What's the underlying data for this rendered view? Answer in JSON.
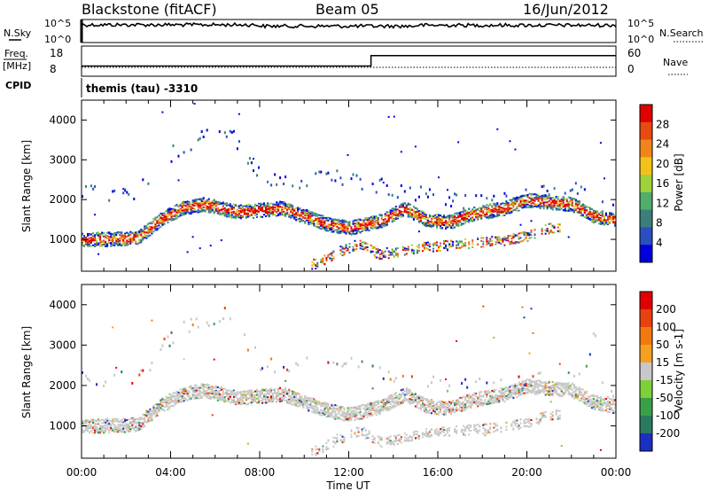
{
  "chart_data": {
    "type": "heatmap",
    "title": "Blackstone (fitACF)",
    "beam": "Beam 05",
    "date": "16/Jun/2012",
    "xlabel": "Time UT",
    "x_ticks": [
      "00:00",
      "04:00",
      "08:00",
      "12:00",
      "16:00",
      "20:00",
      "00:00"
    ],
    "x_range_hours": [
      0,
      24
    ],
    "top_panels": {
      "noise": {
        "left_label": "N.Sky",
        "right_label": "N.Search",
        "left_ticks": [
          "10^5",
          "10^0"
        ],
        "right_ticks": [
          "10^5",
          "10^0"
        ]
      },
      "frequency": {
        "left_label": "Freq.",
        "left_unit": "[MHz]",
        "right_label": "Nave",
        "left_ticks": [
          "18",
          "8"
        ],
        "right_ticks": [
          "60",
          "0"
        ],
        "cpid_label": "CPID",
        "cpid_value": "themis (tau) -3310",
        "freq_series": [
          {
            "hour": 0.0,
            "mhz": 10.5
          },
          {
            "hour": 13.0,
            "mhz": 10.5
          },
          {
            "hour": 13.0,
            "mhz": 15.8
          },
          {
            "hour": 24.0,
            "mhz": 15.8
          }
        ]
      }
    },
    "panels": [
      {
        "name": "Power",
        "ylabel": "Slant Range [km]",
        "yticks": [
          1000,
          2000,
          3000,
          4000
        ],
        "ylim": [
          200,
          4500
        ],
        "colorbar_label": "Power [dB]",
        "colorbar_ticks": [
          "28",
          "24",
          "20",
          "16",
          "12",
          "8",
          "4"
        ],
        "colors": [
          "#0000dd",
          "#2a4fbf",
          "#3a7f7a",
          "#4fae6a",
          "#9fd23a",
          "#f2c21a",
          "#f0861a",
          "#e84a10",
          "#e00000"
        ]
      },
      {
        "name": "Velocity",
        "ylabel": "Slant Range [km]",
        "yticks": [
          1000,
          2000,
          3000,
          4000
        ],
        "ylim": [
          200,
          4500
        ],
        "colorbar_label": "Velocity [m s-1]",
        "colorbar_ticks": [
          "200",
          "100",
          "50",
          "15",
          "-15",
          "-50",
          "-100",
          "-200"
        ],
        "colors": [
          "#1c2fc0",
          "#2a7a60",
          "#3aa048",
          "#7fcf3a",
          "#c8c8c8",
          "#f5a020",
          "#f07a10",
          "#e84010",
          "#e00000"
        ]
      }
    ],
    "echo_bands": [
      {
        "name": "main-band",
        "points": [
          [
            0,
            1000
          ],
          [
            2.5,
            1050
          ],
          [
            3.5,
            1500
          ],
          [
            4.5,
            1800
          ],
          [
            5.5,
            1900
          ],
          [
            7,
            1700
          ],
          [
            9,
            1800
          ],
          [
            10.5,
            1500
          ],
          [
            11,
            1400
          ],
          [
            12,
            1300
          ],
          [
            13.5,
            1500
          ],
          [
            14.5,
            1800
          ],
          [
            15.5,
            1500
          ],
          [
            16.5,
            1450
          ],
          [
            17.5,
            1650
          ],
          [
            19,
            1800
          ],
          [
            20,
            2000
          ],
          [
            22,
            1900
          ],
          [
            23,
            1600
          ],
          [
            24,
            1500
          ]
        ]
      },
      {
        "name": "upper-scatter",
        "points": [
          [
            2.5,
            2200
          ],
          [
            3.5,
            2900
          ],
          [
            4.5,
            3400
          ],
          [
            6.5,
            3800
          ],
          [
            8,
            2600
          ],
          [
            9.5,
            2400
          ],
          [
            11,
            2700
          ],
          [
            14,
            2300
          ],
          [
            17,
            2000
          ],
          [
            20,
            2150
          ],
          [
            22.5,
            2300
          ],
          [
            23,
            3200
          ],
          [
            23.5,
            1700
          ]
        ]
      },
      {
        "name": "lower-band",
        "points": [
          [
            10.5,
            400
          ],
          [
            11.5,
            700
          ],
          [
            12.5,
            900
          ],
          [
            13.5,
            600
          ],
          [
            15,
            800
          ],
          [
            17,
            900
          ],
          [
            19,
            1000
          ],
          [
            20,
            1100
          ],
          [
            21,
            1300
          ]
        ]
      }
    ]
  }
}
